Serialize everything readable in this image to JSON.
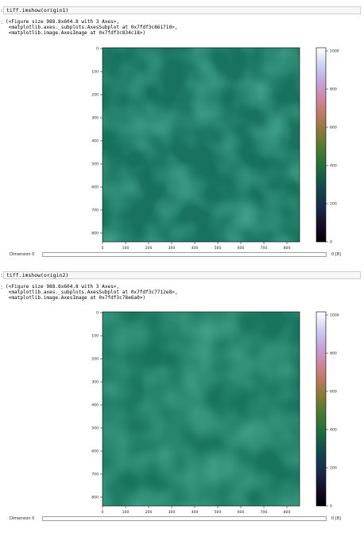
{
  "cells": [
    {
      "input": "tiff.imshow(origin1)",
      "output_lines": [
        "(<Figure size 988.8x604.8 with 3 Axes>,",
        " <matplotlib.axes._subplots.AxesSubplot at 0x7fdf3c861710>,",
        " <matplotlib.image.AxesImage at 0x7fdf3c834c18>)"
      ],
      "y_ticks": [
        "0",
        "100",
        "200",
        "300",
        "400",
        "500",
        "600",
        "700",
        "800"
      ],
      "x_ticks": [
        "0",
        "100",
        "200",
        "300",
        "400",
        "500",
        "600",
        "700",
        "800"
      ],
      "colorbar_ticks": [
        "0",
        "200",
        "400",
        "600",
        "800",
        "1000"
      ],
      "slider_label": "Dimension 0",
      "slider_value": "0 [8]"
    },
    {
      "input": "tiff.imshow(origin2)",
      "output_lines": [
        "(<Figure size 988.8x604.8 with 3 Axes>,",
        " <matplotlib.axes._subplots.AxesSubplot at 0x7fdf3c7712e8>,",
        " <matplotlib.image.AxesImage at 0x7fdf3c78e6a0>)"
      ],
      "y_ticks": [
        "0",
        "100",
        "200",
        "300",
        "400",
        "500",
        "600",
        "700",
        "800"
      ],
      "x_ticks": [
        "0",
        "100",
        "200",
        "300",
        "400",
        "500",
        "600",
        "700",
        "800"
      ],
      "colorbar_ticks": [
        "0",
        "200",
        "400",
        "600",
        "800",
        "1000"
      ],
      "slider_label": "Dimension 0",
      "slider_value": "0 [8]"
    }
  ],
  "colors": {
    "image_base": "#0c5e49",
    "image_dark": "#0a5240",
    "image_light": "#136a4f"
  },
  "colormap": "cubehelix"
}
